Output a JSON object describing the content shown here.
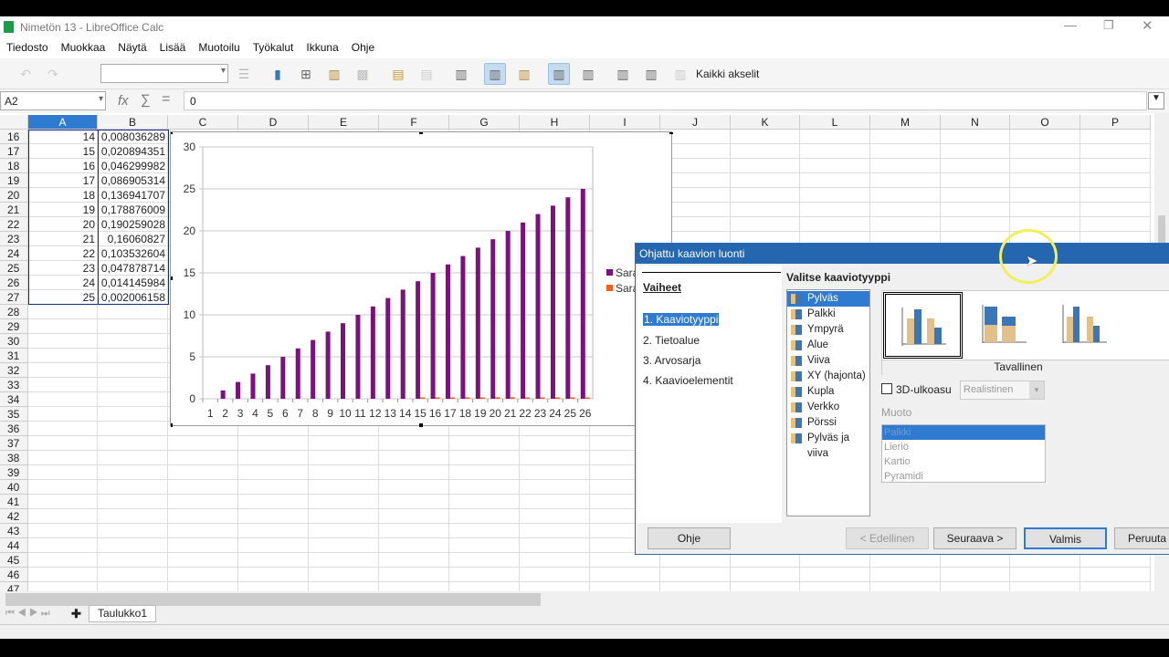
{
  "window": {
    "title": "Nimetön 13 - LibreOffice Calc"
  },
  "menu": [
    "Tiedosto",
    "Muokkaa",
    "Näytä",
    "Lisää",
    "Muotoilu",
    "Työkalut",
    "Ikkuna",
    "Ohje"
  ],
  "toolbar": {
    "all_axes_label": "Kaikki akselit",
    "active_buttons": [
      "data-in-rows",
      "data-in-columns"
    ]
  },
  "formula": {
    "cell_ref": "A2",
    "value": "0",
    "fx": "fx",
    "sum": "∑",
    "equals": "="
  },
  "columns": [
    "A",
    "B",
    "C",
    "D",
    "E",
    "F",
    "G",
    "H",
    "I",
    "J",
    "K",
    "L",
    "M",
    "N",
    "O",
    "P"
  ],
  "rows": [
    {
      "n": "16",
      "a": "14",
      "b": "0,008036289"
    },
    {
      "n": "17",
      "a": "15",
      "b": "0,020894351"
    },
    {
      "n": "18",
      "a": "16",
      "b": "0,046299982"
    },
    {
      "n": "19",
      "a": "17",
      "b": "0,086905314"
    },
    {
      "n": "20",
      "a": "18",
      "b": "0,136941707"
    },
    {
      "n": "21",
      "a": "19",
      "b": "0,178876009"
    },
    {
      "n": "22",
      "a": "20",
      "b": "0,190259028"
    },
    {
      "n": "23",
      "a": "21",
      "b": "0,16060827"
    },
    {
      "n": "24",
      "a": "22",
      "b": "0,103532604"
    },
    {
      "n": "25",
      "a": "23",
      "b": "0,047878714"
    },
    {
      "n": "26",
      "a": "24",
      "b": "0,014145984"
    },
    {
      "n": "27",
      "a": "25",
      "b": "0,002006158"
    },
    {
      "n": "28"
    },
    {
      "n": "29"
    },
    {
      "n": "30"
    },
    {
      "n": "31"
    },
    {
      "n": "32"
    },
    {
      "n": "33"
    },
    {
      "n": "34"
    },
    {
      "n": "35"
    },
    {
      "n": "36"
    },
    {
      "n": "37"
    },
    {
      "n": "38"
    },
    {
      "n": "39"
    },
    {
      "n": "40"
    },
    {
      "n": "41"
    },
    {
      "n": "42"
    },
    {
      "n": "43"
    },
    {
      "n": "44"
    },
    {
      "n": "45"
    },
    {
      "n": "46"
    },
    {
      "n": "47"
    }
  ],
  "chart_data": {
    "type": "bar",
    "categories": [
      "1",
      "2",
      "3",
      "4",
      "5",
      "6",
      "7",
      "8",
      "9",
      "10",
      "11",
      "12",
      "13",
      "14",
      "15",
      "16",
      "17",
      "18",
      "19",
      "20",
      "21",
      "22",
      "23",
      "24",
      "25",
      "26"
    ],
    "series": [
      {
        "name": "Sara",
        "color": "#7e0f7e",
        "values": [
          0,
          1,
          2,
          3,
          4,
          5,
          6,
          7,
          8,
          9,
          10,
          11,
          12,
          13,
          14,
          15,
          16,
          17,
          18,
          19,
          20,
          21,
          22,
          23,
          24,
          25
        ]
      },
      {
        "name": "Sara",
        "color": "#ff5a1e",
        "values": [
          0,
          0,
          0,
          0,
          0,
          0,
          0,
          0,
          0,
          0,
          0,
          0,
          0,
          0,
          0.008,
          0.021,
          0.046,
          0.087,
          0.137,
          0.179,
          0.19,
          0.161,
          0.104,
          0.048,
          0.014,
          0.002
        ]
      }
    ],
    "ylim": [
      0,
      30
    ],
    "yticks": [
      "0",
      "5",
      "10",
      "15",
      "20",
      "25",
      "30"
    ],
    "grid": true,
    "legend": "right"
  },
  "dialog": {
    "title": "Ohjattu kaavion luonti",
    "steps_heading": "Vaiheet",
    "steps": [
      "1. Kaaviotyyppi",
      "2. Tietoalue",
      "3. Arvosarja",
      "4. Kaavioelementit"
    ],
    "type_heading": "Valitse kaaviotyyppi",
    "types": [
      "Pylväs",
      "Palkki",
      "Ympyrä",
      "Alue",
      "Viiva",
      "XY (hajonta)",
      "Kupla",
      "Verkko",
      "Pörssi",
      "Pylväs ja viiva"
    ],
    "variant_label": "Tavallinen",
    "three_d_label": "3D-ulkoasu",
    "three_d_checked": false,
    "three_d_style": "Realistinen",
    "shape_label": "Muoto",
    "shapes": [
      "Palkki",
      "Lieriö",
      "Kartio",
      "Pyramidi"
    ],
    "buttons": {
      "help": "Ohje",
      "prev": "< Edellinen",
      "next": "Seuraava >",
      "finish": "Valmis",
      "cancel": "Peruuta"
    }
  },
  "sheet_tab": "Taulukko1"
}
